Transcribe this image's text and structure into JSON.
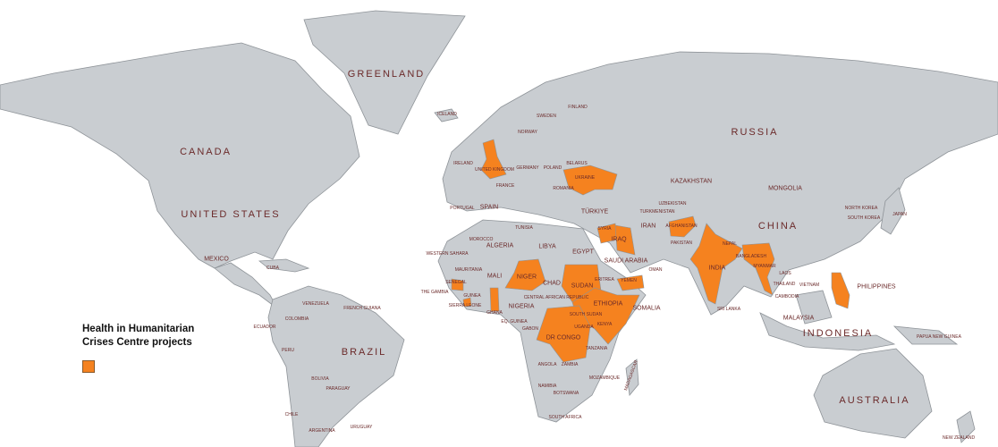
{
  "legend": {
    "title_line1": "Health in Humanitarian",
    "title_line2": "Crises Centre projects",
    "highlight_color": "#f5821f"
  },
  "colors": {
    "land": "#c9cdd1",
    "ocean": "#ffffff",
    "highlight": "#f5821f",
    "label": "#6b2a2a"
  },
  "highlighted_countries": [
    "United Kingdom",
    "Ukraine",
    "Syria",
    "Iraq",
    "Niger",
    "Senegal",
    "Sierra Leone",
    "Ghana",
    "Sudan",
    "South Sudan",
    "Ethiopia",
    "Somalia",
    "Kenya",
    "Uganda",
    "DR Congo",
    "Yemen",
    "Afghanistan",
    "India",
    "Bangladesh",
    "Myanmar",
    "Philippines"
  ],
  "labels": {
    "greenland": "GREENLAND",
    "canada": "CANADA",
    "united_states": "UNITED STATES",
    "mexico": "MEXICO",
    "cuba": "CUBA",
    "venezuela": "VENEZUELA",
    "colombia": "COLOMBIA",
    "ecuador": "ECUADOR",
    "peru": "PERU",
    "brazil": "BRAZIL",
    "bolivia": "BOLIVIA",
    "paraguay": "PARAGUAY",
    "chile": "CHILE",
    "argentina": "ARGENTINA",
    "uruguay": "URUGUAY",
    "french_guiana": "FRENCH GUIANA",
    "iceland": "ICELAND",
    "ireland": "IRELAND",
    "sweden": "SWEDEN",
    "finland": "FINLAND",
    "norway": "NORWAY",
    "germany": "GERMANY",
    "poland": "POLAND",
    "belarus": "BELARUS",
    "ukraine": "UKRAINE",
    "france": "FRANCE",
    "romania": "ROMANIA",
    "spain": "SPAIN",
    "portugal": "PORTUGAL",
    "turkiye": "TÜRKIYE",
    "russia": "RUSSIA",
    "kazakhstan": "KAZAKHSTAN",
    "mongolia": "MONGOLIA",
    "china": "CHINA",
    "japan": "JAPAN",
    "north_korea": "NORTH KOREA",
    "south_korea": "SOUTH KOREA",
    "uzbekistan": "UZBEKISTAN",
    "turkmenistan": "TURKMENISTAN",
    "afghanistan": "AFGHANISTAN",
    "pakistan": "PAKISTAN",
    "iran": "IRAN",
    "iraq": "IRAQ",
    "syria": "SYRIA",
    "saudi_arabia": "SAUDI ARABIA",
    "yemen": "YEMEN",
    "oman": "OMAN",
    "india": "INDIA",
    "nepal": "NEPAL",
    "bangladesh": "BANGLADESH",
    "myanmar": "MYANMAR",
    "thailand": "THAILAND",
    "vietnam": "VIETNAM",
    "cambodia": "CAMBODIA",
    "laos": "LAOS",
    "philippines": "PHILIPPINES",
    "malaysia": "MALAYSIA",
    "indonesia": "INDONESIA",
    "sri_lanka": "SRI LANKA",
    "papua_new_guinea": "PAPUA NEW GUINEA",
    "australia": "AUSTRALIA",
    "new_zealand": "NEW ZEALAND",
    "morocco": "MOROCCO",
    "western_sahara": "WESTERN SAHARA",
    "algeria": "ALGERIA",
    "tunisia": "TUNISIA",
    "libya": "LIBYA",
    "egypt": "EGYPT",
    "mauritania": "MAURITANIA",
    "mali": "MALI",
    "niger": "NIGER",
    "chad": "CHAD",
    "sudan": "SUDAN",
    "eritrea": "ERITREA",
    "ethiopia": "ETHIOPIA",
    "south_sudan": "SOUTH SUDAN",
    "somalia": "SOMALIA",
    "kenya": "KENYA",
    "nigeria": "NIGERIA",
    "guinea": "GUINEA",
    "the_gambia": "THE GAMBIA",
    "central_african_republic": "CENTRAL AFRICAN REPUBLIC",
    "eq_guinea": "EQ. GUINEA",
    "gabon": "GABON",
    "dr_congo": "DR CONGO",
    "tanzania": "TANZANIA",
    "angola": "ANGOLA",
    "zambia": "ZAMBIA",
    "namibia": "NAMIBIA",
    "botswana": "BOTSWANA",
    "mozambique": "MOZAMBIQUE",
    "madagascar": "MADAGASCAR",
    "south_africa": "SOUTH AFRICA"
  }
}
